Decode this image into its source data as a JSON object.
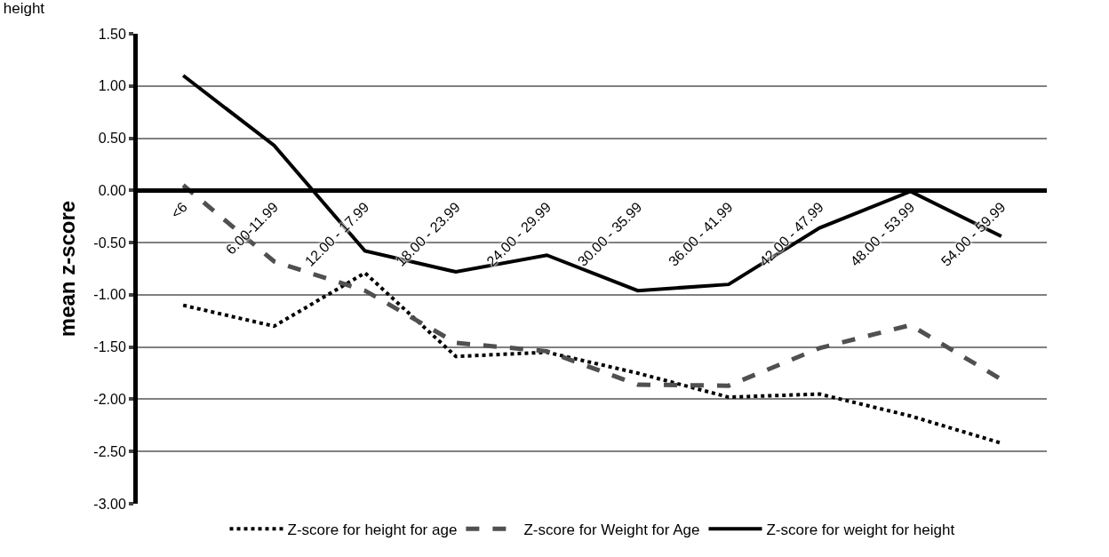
{
  "chart_data": {
    "type": "line",
    "title": "height",
    "ylabel": "mean z-score",
    "categories": [
      "<6",
      "6.00-11.99",
      "12.00 - 17.99",
      "18.00 - 23.99",
      "24.00 - 29.99",
      "30.00 - 35.99",
      "36.00 - 41.99",
      "42.00 - 47.99",
      "48.00 - 53.99",
      "54.00 - 59.99"
    ],
    "series": [
      {
        "name": "Z-score for height for age",
        "color": "#000000",
        "line_style": "dotted",
        "values": [
          -1.1,
          -1.3,
          -0.79,
          -1.59,
          -1.55,
          -1.75,
          -1.98,
          -1.95,
          -2.16,
          -2.42
        ]
      },
      {
        "name": "Z-score for Weight for Age",
        "color": "#505050",
        "line_style": "dashed",
        "values": [
          0.05,
          -0.68,
          -0.96,
          -1.46,
          -1.54,
          -1.86,
          -1.87,
          -1.51,
          -1.29,
          -1.81
        ]
      },
      {
        "name": "Z-score for weight for height",
        "color": "#000000",
        "line_style": "solid",
        "values": [
          1.1,
          0.43,
          -0.58,
          -0.78,
          -0.62,
          -0.96,
          -0.9,
          -0.36,
          -0.01,
          -0.44
        ]
      }
    ],
    "ylim": [
      -3,
      1.5
    ],
    "yticks": [
      {
        "value": -3,
        "label": "-3.00"
      },
      {
        "value": -2.5,
        "label": "-2.50"
      },
      {
        "value": -2,
        "label": "-2.00"
      },
      {
        "value": -1.5,
        "label": "-1.50"
      },
      {
        "value": -1,
        "label": "-1.00"
      },
      {
        "value": -0.5,
        "label": "-0.50"
      },
      {
        "value": 0,
        "label": "0.00"
      },
      {
        "value": 0.5,
        "label": "0.50"
      },
      {
        "value": 1,
        "label": "1.00"
      },
      {
        "value": 1.5,
        "label": "1.50"
      }
    ],
    "grid": "y",
    "legend": "bottom",
    "marker": "none"
  }
}
